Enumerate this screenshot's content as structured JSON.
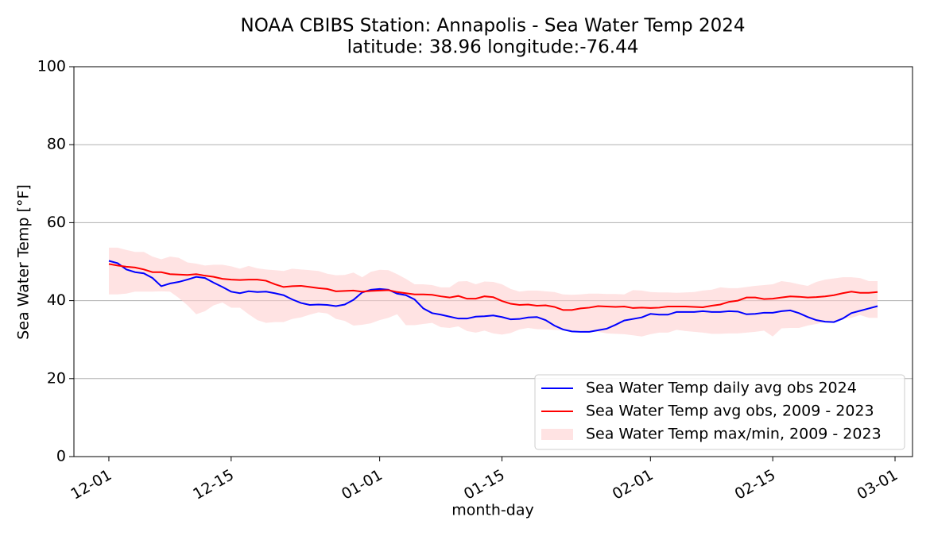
{
  "chart_data": {
    "type": "line",
    "title": "NOAA CBIBS Station: Annapolis - Sea Water Temp 2024",
    "subtitle": "latitude: 38.96 longitude:-76.44",
    "xlabel": "month-day",
    "ylabel": "Sea Water Temp [°F]",
    "x": [
      "12-01",
      "12-02",
      "12-03",
      "12-04",
      "12-05",
      "12-06",
      "12-07",
      "12-08",
      "12-09",
      "12-10",
      "12-11",
      "12-12",
      "12-13",
      "12-14",
      "12-15",
      "12-16",
      "12-17",
      "12-18",
      "12-19",
      "12-20",
      "12-21",
      "12-22",
      "12-23",
      "12-24",
      "12-25",
      "12-26",
      "12-27",
      "12-28",
      "12-29",
      "12-30",
      "12-31",
      "01-01",
      "01-02",
      "01-03",
      "01-04",
      "01-05",
      "01-06",
      "01-07",
      "01-08",
      "01-09",
      "01-10",
      "01-11",
      "01-12",
      "01-13",
      "01-14",
      "01-15",
      "01-16",
      "01-17",
      "01-18",
      "01-19",
      "01-20",
      "01-21",
      "01-22",
      "01-23",
      "01-24",
      "01-25",
      "01-26",
      "01-27",
      "01-28",
      "01-29",
      "01-30",
      "01-31",
      "02-01",
      "02-02",
      "02-03",
      "02-04",
      "02-05",
      "02-06",
      "02-07",
      "02-08",
      "02-09",
      "02-10",
      "02-11",
      "02-12",
      "02-13",
      "02-14",
      "02-15",
      "02-16",
      "02-17",
      "02-18",
      "02-19",
      "02-20",
      "02-21",
      "02-22",
      "02-23",
      "02-24",
      "02-25",
      "02-26",
      "02-27"
    ],
    "series": [
      {
        "name": "Sea Water Temp daily avg obs 2024",
        "color": "#0000ff",
        "values": [
          50.2,
          49.6,
          48,
          47.3,
          47,
          45.8,
          43.7,
          44.4,
          44.8,
          45.4,
          46.1,
          45.8,
          44.6,
          43.5,
          42.3,
          41.9,
          42.4,
          42.2,
          42.3,
          41.9,
          41.4,
          40.3,
          39.4,
          38.9,
          39,
          38.9,
          38.6,
          39,
          40.2,
          42.1,
          42.8,
          43,
          42.8,
          41.8,
          41.4,
          40.3,
          38,
          36.8,
          36.4,
          35.9,
          35.4,
          35.4,
          35.9,
          36,
          36.2,
          35.8,
          35.2,
          35.3,
          35.7,
          35.8,
          35,
          33.6,
          32.6,
          32.1,
          32,
          32,
          32.4,
          32.8,
          33.8,
          34.9,
          35.3,
          35.7,
          36.6,
          36.4,
          36.4,
          37.1,
          37.1,
          37.1,
          37.3,
          37.1,
          37.1,
          37.3,
          37.2,
          36.5,
          36.6,
          36.9,
          36.9,
          37.3,
          37.5,
          36.8,
          35.8,
          35,
          34.6,
          34.5,
          35.4,
          36.8,
          37.4,
          38,
          38.6
        ]
      },
      {
        "name": "Sea Water Temp avg obs, 2009 - 2023",
        "color": "#ff0000",
        "values": [
          49.4,
          49,
          48.7,
          48.5,
          48,
          47.3,
          47.3,
          46.8,
          46.7,
          46.6,
          46.8,
          46.4,
          46.1,
          45.6,
          45.4,
          45.3,
          45.4,
          45.4,
          45.1,
          44.2,
          43.5,
          43.7,
          43.8,
          43.5,
          43.2,
          43,
          42.4,
          42.5,
          42.6,
          42.3,
          42.5,
          42.6,
          42.7,
          42.2,
          41.9,
          41.6,
          41.6,
          41.5,
          41.1,
          40.8,
          41.2,
          40.5,
          40.5,
          41.1,
          40.9,
          39.9,
          39.2,
          38.9,
          39,
          38.7,
          38.8,
          38.4,
          37.6,
          37.6,
          38,
          38.2,
          38.6,
          38.5,
          38.4,
          38.5,
          38.1,
          38.2,
          38.1,
          38.2,
          38.5,
          38.5,
          38.5,
          38.4,
          38.3,
          38.7,
          39,
          39.7,
          40,
          40.8,
          40.8,
          40.4,
          40.5,
          40.8,
          41.1,
          41,
          40.8,
          40.9,
          41.1,
          41.4,
          41.9,
          42.3,
          42,
          42,
          42.2
        ]
      },
      {
        "name": "Sea Water Temp max/min, 2009 - 2023",
        "color": "#ffcccc",
        "max": [
          53.6,
          53.6,
          53,
          52.5,
          52.5,
          51.3,
          50.6,
          51.3,
          51,
          49.8,
          49.5,
          49,
          49.2,
          49.2,
          48.8,
          48.2,
          48.9,
          48.3,
          48,
          47.8,
          47.6,
          48.2,
          48,
          47.8,
          47.6,
          46.9,
          46.5,
          46.6,
          47.2,
          46,
          47.4,
          47.9,
          47.8,
          46.8,
          45.6,
          44.2,
          44.2,
          44,
          43.4,
          43.4,
          44.9,
          45,
          44.2,
          44.9,
          44.8,
          44.2,
          43,
          42.3,
          42.6,
          42.6,
          42.4,
          42.2,
          41.6,
          41.5,
          41.6,
          41.8,
          41.8,
          41.7,
          41.7,
          41.6,
          42.7,
          42.6,
          42.2,
          42.1,
          42.1,
          42,
          42.1,
          42.2,
          42.6,
          42.8,
          43.4,
          43.2,
          43.2,
          43.5,
          43.8,
          44,
          44.2,
          45,
          44.7,
          44.2,
          43.8,
          44.8,
          45.4,
          45.7,
          46,
          46,
          45.8,
          45,
          45
        ],
        "min": [
          41.6,
          41.6,
          41.8,
          42.3,
          42.3,
          42.3,
          42.4,
          42.3,
          40.7,
          38.8,
          36.5,
          37.3,
          38.8,
          39.5,
          38.2,
          38.2,
          36.5,
          35,
          34.3,
          34.5,
          34.5,
          35.3,
          35.7,
          36.4,
          37,
          36.7,
          35.3,
          34.8,
          33.6,
          33.8,
          34.2,
          35,
          35.6,
          36.5,
          33.7,
          33.7,
          34,
          34.3,
          33.2,
          33,
          33.4,
          32.2,
          31.8,
          32.3,
          31.6,
          31.3,
          31.7,
          32.6,
          33,
          32.7,
          32.6,
          32.5,
          32.4,
          32.3,
          32.3,
          32,
          32,
          31.6,
          31.5,
          31.4,
          31.1,
          30.8,
          31.4,
          31.8,
          31.8,
          32.5,
          32.2,
          32,
          31.8,
          31.5,
          31.5,
          31.6,
          31.6,
          31.8,
          32,
          32.3,
          30.8,
          32.9,
          33,
          33,
          33.6,
          34,
          34.5,
          34.6,
          35.4,
          35.6,
          36.3,
          35.6,
          35.6
        ]
      }
    ],
    "xlim": [
      "11-27",
      "03-03"
    ],
    "xticks": [
      "12-01",
      "12-15",
      "01-01",
      "01-15",
      "02-01",
      "02-15",
      "03-01"
    ],
    "ylim": [
      0,
      100
    ],
    "yticks": [
      0,
      20,
      40,
      60,
      80,
      100
    ],
    "grid": true,
    "legend": "lower right"
  }
}
